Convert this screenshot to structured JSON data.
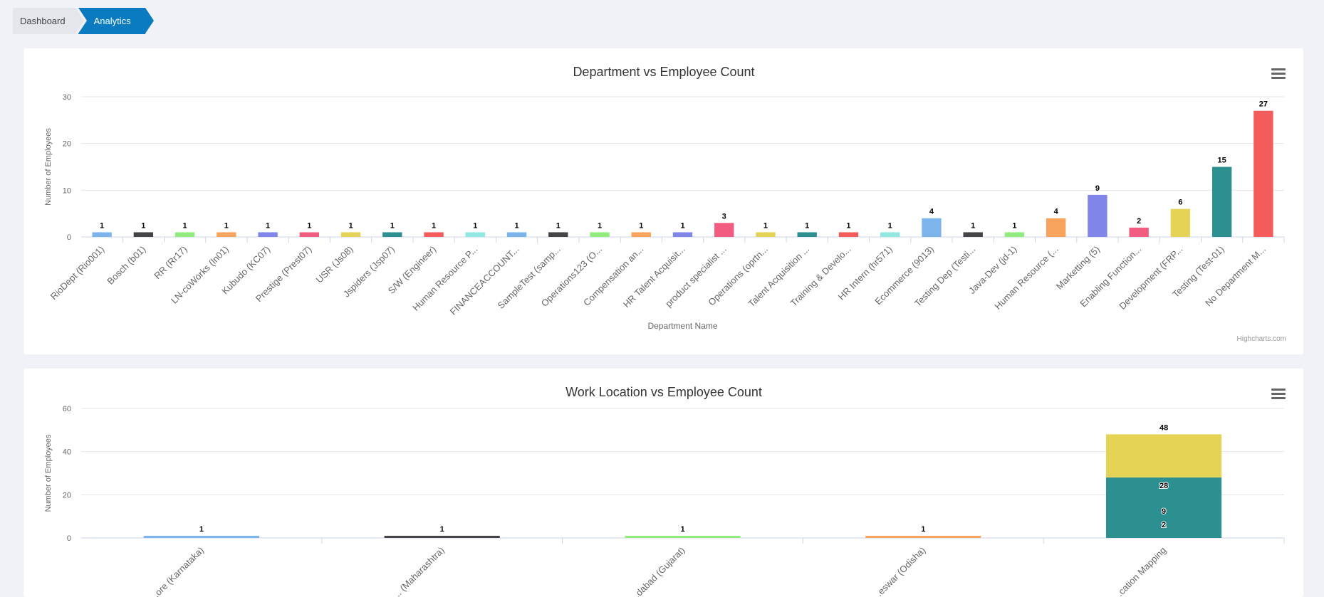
{
  "breadcrumb": {
    "items": [
      "Dashboard",
      "Analytics"
    ]
  },
  "chart_data": [
    {
      "type": "bar",
      "title": "Department vs Employee Count",
      "xlabel": "Department Name",
      "ylabel": "Number of Employees",
      "ylim": [
        0,
        30
      ],
      "yticks": [
        0,
        10,
        20,
        30
      ],
      "grid": true,
      "credit": "Highcharts.com",
      "categories": [
        "RioDept (Rio001)",
        "Bosch (b01)",
        "RR (Rr17)",
        "LN-coWorks (ln01)",
        "Kubudo (KC07)",
        "Prestige (Prest07)",
        "USR (Js08)",
        "Jspiders (Jsp07)",
        "S/W (Engineer)",
        "Human Resource P...",
        "FINANCEACCOUNT...",
        "SampleTest (samp...",
        "Operations123 (O...",
        "Compensation an...",
        "HR Talent Acquisit...",
        "product specialist ...",
        "Operations (oprtn...",
        "Talent Acquisition ...",
        "Training & Develo...",
        "HR Intern (hr571)",
        "Ecommerce (9013)",
        "Testing Dep (Testi...",
        "Java-Dev (jd-1)",
        "Human Resource (...",
        "Marketting (5)",
        "Enabling Function...",
        "Development (FRP...",
        "Testing (Test-01)",
        "No Department M..."
      ],
      "values": [
        1,
        1,
        1,
        1,
        1,
        1,
        1,
        1,
        1,
        1,
        1,
        1,
        1,
        1,
        1,
        3,
        1,
        1,
        1,
        1,
        4,
        1,
        1,
        4,
        9,
        2,
        6,
        15,
        27
      ],
      "colors": [
        "#7cb5ec",
        "#434348",
        "#90ed7d",
        "#f7a35c",
        "#8085e9",
        "#f15c80",
        "#e4d354",
        "#2b908f",
        "#f45b5b",
        "#91e8e1"
      ]
    },
    {
      "type": "bar",
      "title": "Work Location vs Employee Count",
      "ylabel": "Number of Employees",
      "ylim": [
        0,
        60
      ],
      "yticks": [
        0,
        20,
        40,
        60
      ],
      "grid": true,
      "categories": [
        "...ore (Karnataka)",
        "... (Maharashtra)",
        "...dabad (Gujarat)",
        "...eswar (Odisha)",
        "...cation Mapping"
      ],
      "values": [
        1,
        1,
        1,
        1,
        48
      ],
      "colors": [
        "#7cb5ec",
        "#434348",
        "#90ed7d",
        "#f7a35c"
      ],
      "stack": {
        "category_index": 4,
        "segments": [
          {
            "value": 28,
            "label": "28",
            "color": "#2b908f"
          },
          {
            "value": 20,
            "label": "",
            "color": "#e4d354"
          }
        ],
        "inner_labels": [
          "9",
          "2"
        ],
        "total_label": "48"
      }
    }
  ]
}
